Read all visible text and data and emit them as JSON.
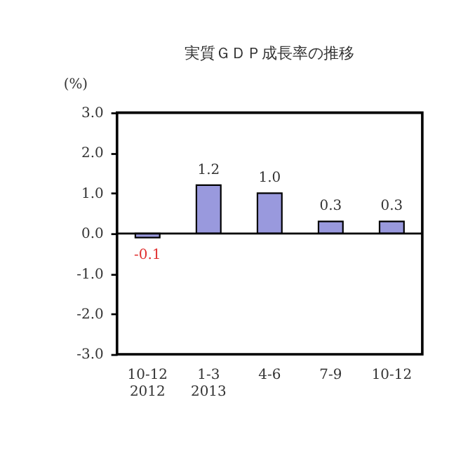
{
  "chart_data": {
    "type": "bar",
    "title": "実質ＧＤＰ成長率の推移",
    "ylabel": "(%)",
    "categories": [
      "10-12\n2012",
      "1-3\n2013",
      "4-6",
      "7-9",
      "10-12"
    ],
    "values": [
      -0.1,
      1.2,
      1.0,
      0.3,
      0.3
    ],
    "color": "#9999dd",
    "value_labels": [
      "-0.1",
      "1.2",
      "1.0",
      "0.3",
      "0.3"
    ],
    "ylim": [
      -3,
      3
    ],
    "yticks": [
      {
        "value": 3,
        "label": "3.0"
      },
      {
        "value": 2,
        "label": "2.0"
      },
      {
        "value": 1,
        "label": "1.0"
      },
      {
        "value": 0,
        "label": "0.0"
      },
      {
        "value": -1,
        "label": "-1.0"
      },
      {
        "value": -2,
        "label": "-2.0"
      },
      {
        "value": -3,
        "label": "-3.0"
      }
    ],
    "ref_lines": [
      {
        "axis": "y",
        "value": 0
      }
    ],
    "grid": false
  }
}
